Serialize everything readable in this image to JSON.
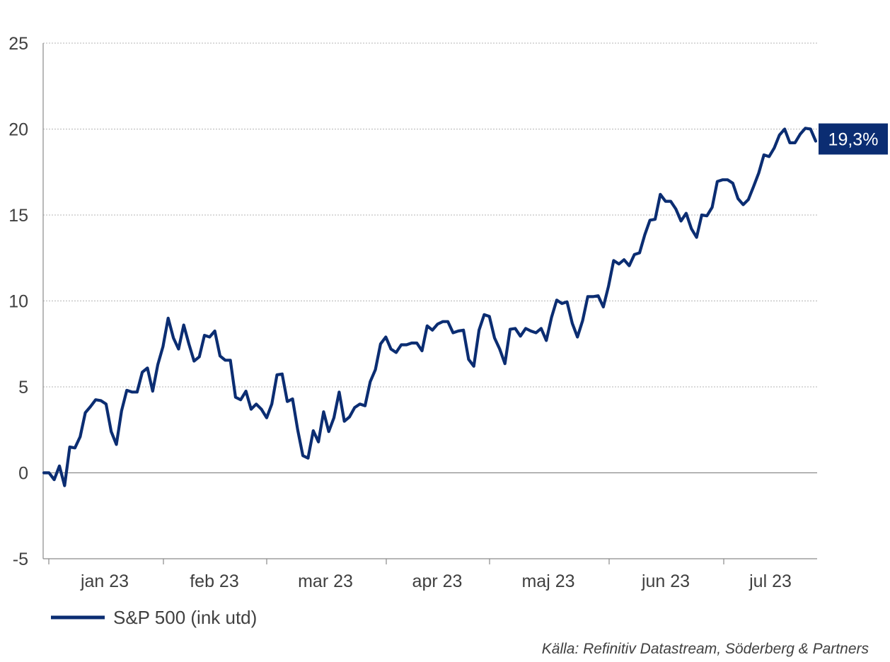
{
  "chart_data": {
    "type": "line",
    "y_ticks": [
      "-5",
      "0",
      "5",
      "10",
      "15",
      "20",
      "25"
    ],
    "ylim": [
      -5,
      25
    ],
    "x_ticks": [
      "jan 23",
      "feb 23",
      "mar 23",
      "apr 23",
      "maj 23",
      "jun 23",
      "jul 23"
    ],
    "grid": true,
    "legend_position": "bottom-left",
    "series": [
      {
        "name": "S&P 500 (ink utd)",
        "color": "#0b2d72",
        "values": [
          0.0,
          0.0,
          -0.4,
          0.4,
          -0.75,
          1.5,
          1.45,
          2.1,
          3.5,
          3.85,
          4.25,
          4.2,
          4.0,
          2.4,
          1.65,
          3.6,
          4.8,
          4.7,
          4.7,
          5.85,
          6.1,
          4.75,
          6.3,
          7.35,
          9.0,
          7.85,
          7.2,
          8.6,
          7.5,
          6.5,
          6.75,
          8.0,
          7.9,
          8.25,
          6.8,
          6.55,
          6.55,
          4.4,
          4.25,
          4.75,
          3.7,
          4.0,
          3.7,
          3.2,
          4.0,
          5.7,
          5.75,
          4.15,
          4.3,
          2.5,
          1.0,
          0.85,
          2.45,
          1.8,
          3.55,
          2.4,
          3.2,
          4.7,
          3.0,
          3.25,
          3.8,
          4.0,
          3.9,
          5.3,
          6.0,
          7.5,
          7.9,
          7.2,
          7.0,
          7.45,
          7.45,
          7.55,
          7.55,
          7.1,
          8.55,
          8.3,
          8.65,
          8.8,
          8.8,
          8.15,
          8.25,
          8.3,
          6.6,
          6.2,
          8.3,
          9.2,
          9.1,
          7.85,
          7.2,
          6.35,
          8.35,
          8.4,
          7.95,
          8.4,
          8.25,
          8.15,
          8.4,
          7.7,
          9.05,
          10.05,
          9.85,
          9.95,
          8.7,
          7.9,
          8.85,
          10.25,
          10.25,
          10.3,
          9.65,
          10.85,
          12.35,
          12.15,
          12.4,
          12.05,
          12.7,
          12.8,
          13.85,
          14.7,
          14.75,
          16.2,
          15.8,
          15.8,
          15.35,
          14.65,
          15.1,
          14.2,
          13.7,
          15.0,
          14.95,
          15.45,
          16.95,
          17.05,
          17.05,
          16.85,
          15.95,
          15.6,
          15.9,
          16.65,
          17.45,
          18.5,
          18.4,
          18.9,
          19.65,
          20.0,
          19.2,
          19.2,
          19.7,
          20.05,
          20.0,
          19.3
        ]
      }
    ],
    "end_label": "19,3%",
    "end_label_bg": "#0b2d72",
    "source": "Källa: Refinitiv Datastream, Söderberg & Partners"
  }
}
